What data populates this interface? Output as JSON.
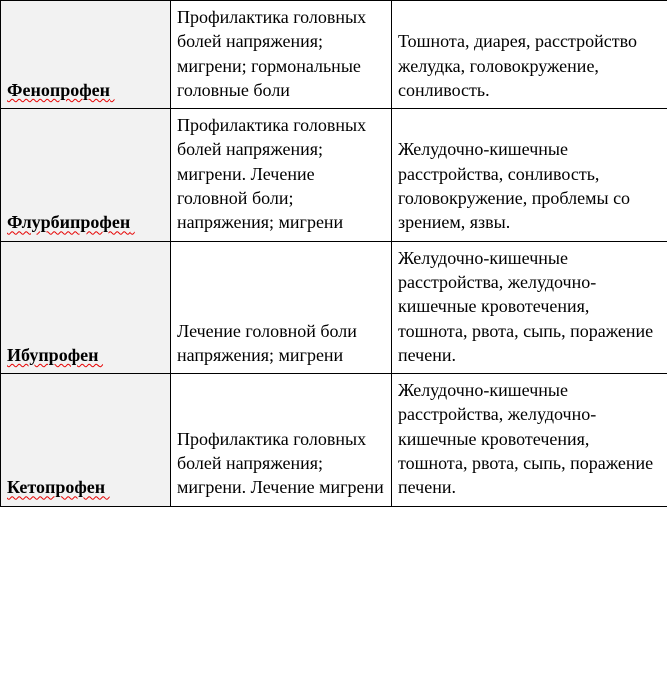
{
  "table": {
    "columns": {
      "widths": [
        170,
        221,
        276
      ]
    },
    "header_bg": "#f2f2f2",
    "border_color": "#000000",
    "font_family": "Times New Roman",
    "font_size_pt": 14,
    "spellcheck_underline_color": "#e60000",
    "rows": [
      {
        "name": "Фенопрофен",
        "indications": "Профилактика головных болей напряжения; мигрени; гормональные головные боли",
        "side_effects": "Тошнота, диарея, расстройство желудка, головокружение, сонливость."
      },
      {
        "name": "Флурбипрофен",
        "indications": "Профилактика головных болей напряжения; мигрени. Лечение головной боли; напряжения; мигрени",
        "side_effects": "Желудочно-кишечные расстройства, сонливость, головокружение, проблемы со зрением, язвы."
      },
      {
        "name": "Ибупрофен",
        "indications": "Лечение головной боли напряжения; мигрени",
        "side_effects": "Желудочно-кишечные расстройства, желудочно-кишечные кровотечения, тошнота, рвота, сыпь, поражение печени."
      },
      {
        "name": "Кетопрофен",
        "indications": "Профилактика головных болей напряжения; мигрени. Лечение мигрени",
        "side_effects": "Желудочно-кишечные расстройства, желудочно-кишечные кровотечения, тошнота, рвота, сыпь, поражение печени."
      }
    ]
  }
}
